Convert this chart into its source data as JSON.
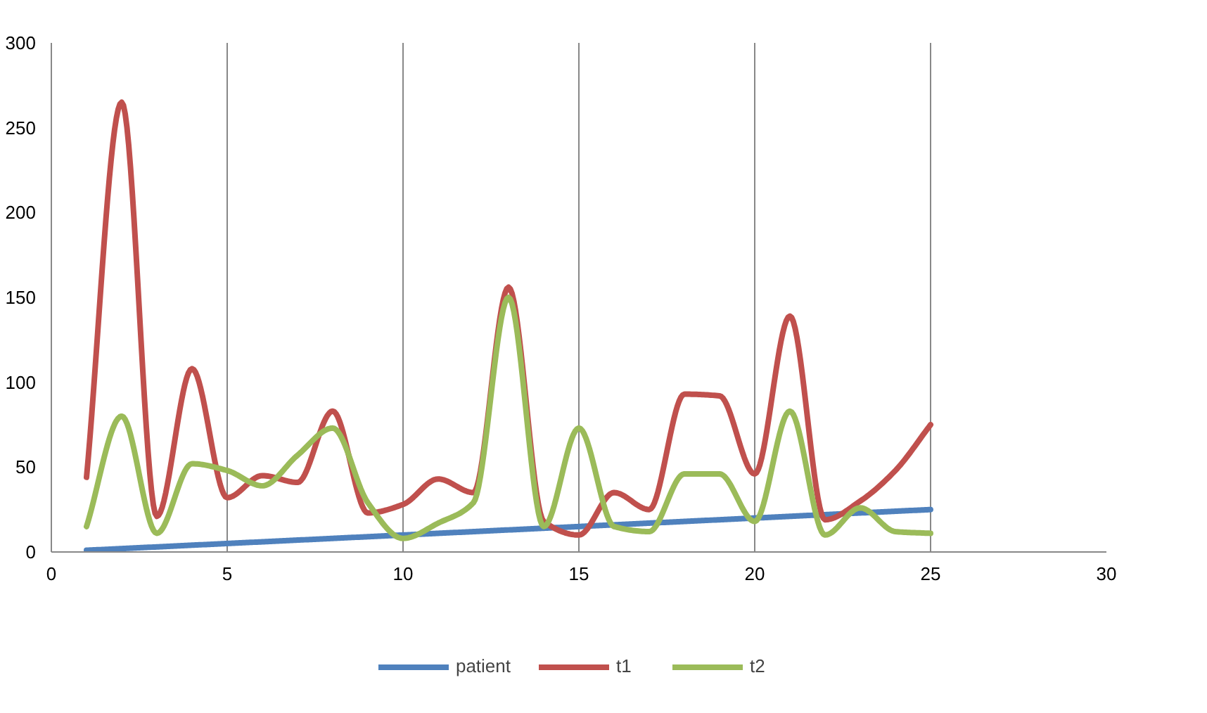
{
  "chart_data": {
    "type": "line",
    "x": [
      1,
      2,
      3,
      4,
      5,
      6,
      7,
      8,
      9,
      10,
      11,
      12,
      13,
      14,
      15,
      16,
      17,
      18,
      19,
      20,
      21,
      22,
      23,
      24,
      25
    ],
    "series": [
      {
        "name": "patient",
        "color": "#4f81bd",
        "values": [
          1,
          2,
          3,
          4,
          5,
          6,
          7,
          8,
          9,
          10,
          11,
          12,
          13,
          14,
          15,
          16,
          17,
          18,
          19,
          20,
          21,
          22,
          23,
          24,
          25
        ]
      },
      {
        "name": "t1",
        "color": "#c0504d",
        "values": [
          44,
          265,
          21,
          108,
          32,
          45,
          41,
          83,
          23,
          28,
          43,
          35,
          156,
          18,
          10,
          35,
          25,
          93,
          92,
          46,
          139,
          19,
          30,
          48,
          75
        ]
      },
      {
        "name": "t2",
        "color": "#9bbb59",
        "values": [
          15,
          80,
          11,
          52,
          48,
          39,
          57,
          73,
          29,
          8,
          17,
          29,
          150,
          15,
          73,
          15,
          12,
          46,
          46,
          18,
          83,
          10,
          26,
          12,
          11
        ]
      }
    ],
    "xlim": [
      0,
      30
    ],
    "xticks": [
      0,
      5,
      10,
      15,
      20,
      25,
      30
    ],
    "ylim": [
      0,
      300
    ],
    "yticks": [
      0,
      50,
      100,
      150,
      200,
      250,
      300
    ],
    "grid": "x",
    "legend": "bottom",
    "marker": "none",
    "line_style": "solid"
  }
}
